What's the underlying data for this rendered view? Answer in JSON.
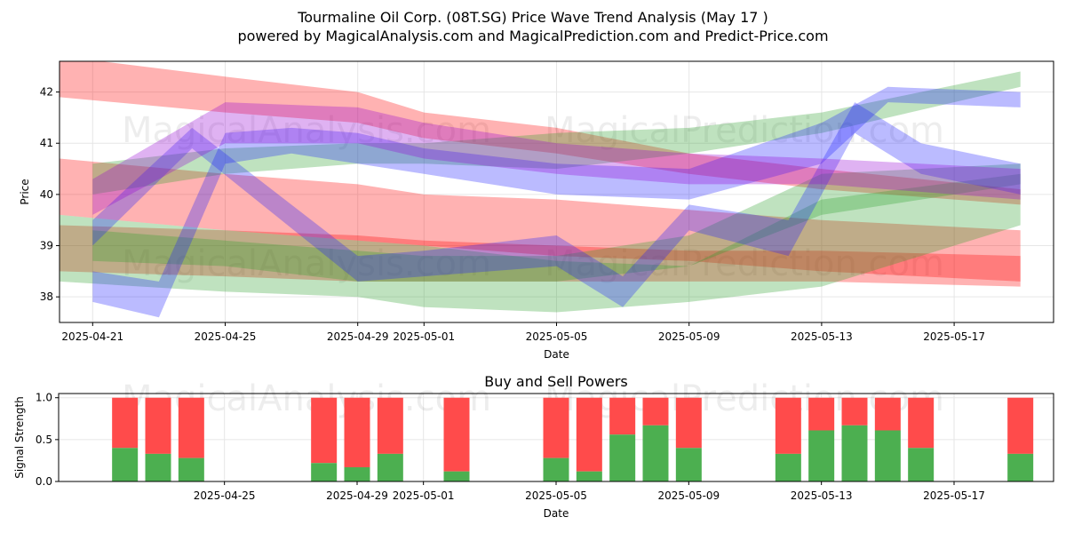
{
  "page": {
    "title_line1": "Tourmaline Oil Corp. (08T.SG) Price Wave Trend Analysis (May 17 )",
    "title_line2": "powered by MagicalAnalysis.com and MagicalPrediction.com and Predict-Price.com",
    "watermarks": [
      "MagicalAnalysis.com",
      "MagicalPrediction.com"
    ]
  },
  "colors": {
    "red": "#ff0000",
    "green": "#2ca02c",
    "blue": "#1f1fff",
    "purple": "#9400d3",
    "buy": "#4caf50",
    "sell": "#ff4b4b"
  },
  "chart_data": [
    {
      "type": "area",
      "title": "",
      "xlabel": "Date",
      "ylabel": "Price",
      "x_range": [
        "2025-04-20",
        "2025-05-20"
      ],
      "ylim": [
        37.5,
        42.6
      ],
      "y_ticks": [
        38,
        39,
        40,
        41,
        42
      ],
      "x_ticks": [
        "2025-04-21",
        "2025-04-25",
        "2025-04-29",
        "2025-05-01",
        "2025-05-05",
        "2025-05-09",
        "2025-05-13",
        "2025-05-17"
      ],
      "grid": true,
      "series": [
        {
          "color": "red",
          "band": [
            {
              "x": "2025-04-20",
              "low": 41.9,
              "high": 42.7
            },
            {
              "x": "2025-04-25",
              "low": 41.6,
              "high": 42.3
            },
            {
              "x": "2025-04-29",
              "low": 41.4,
              "high": 42.0
            },
            {
              "x": "2025-05-01",
              "low": 41.1,
              "high": 41.6
            },
            {
              "x": "2025-05-05",
              "low": 40.8,
              "high": 41.3
            },
            {
              "x": "2025-05-09",
              "low": 40.4,
              "high": 40.8
            },
            {
              "x": "2025-05-13",
              "low": 40.1,
              "high": 40.5
            },
            {
              "x": "2025-05-19",
              "low": 39.8,
              "high": 40.1
            }
          ]
        },
        {
          "color": "red",
          "band": [
            {
              "x": "2025-04-20",
              "low": 39.6,
              "high": 40.7
            },
            {
              "x": "2025-04-25",
              "low": 39.3,
              "high": 40.4
            },
            {
              "x": "2025-04-29",
              "low": 39.1,
              "high": 40.2
            },
            {
              "x": "2025-05-01",
              "low": 39.0,
              "high": 40.0
            },
            {
              "x": "2025-05-05",
              "low": 38.8,
              "high": 39.9
            },
            {
              "x": "2025-05-09",
              "low": 38.7,
              "high": 39.7
            },
            {
              "x": "2025-05-13",
              "low": 38.5,
              "high": 39.5
            },
            {
              "x": "2025-05-19",
              "low": 38.3,
              "high": 39.3
            }
          ]
        },
        {
          "color": "red",
          "band": [
            {
              "x": "2025-04-20",
              "low": 38.5,
              "high": 39.4
            },
            {
              "x": "2025-04-25",
              "low": 38.4,
              "high": 39.3
            },
            {
              "x": "2025-04-29",
              "low": 38.3,
              "high": 39.2
            },
            {
              "x": "2025-05-01",
              "low": 38.3,
              "high": 39.1
            },
            {
              "x": "2025-05-05",
              "low": 38.3,
              "high": 39.0
            },
            {
              "x": "2025-05-09",
              "low": 38.3,
              "high": 38.9
            },
            {
              "x": "2025-05-13",
              "low": 38.3,
              "high": 38.9
            },
            {
              "x": "2025-05-19",
              "low": 38.2,
              "high": 38.8
            }
          ]
        },
        {
          "color": "green",
          "band": [
            {
              "x": "2025-04-20",
              "low": 38.3,
              "high": 39.6
            },
            {
              "x": "2025-04-25",
              "low": 38.1,
              "high": 39.3
            },
            {
              "x": "2025-04-29",
              "low": 38.0,
              "high": 39.1
            },
            {
              "x": "2025-05-01",
              "low": 37.8,
              "high": 39.0
            },
            {
              "x": "2025-05-05",
              "low": 37.7,
              "high": 38.7
            },
            {
              "x": "2025-05-09",
              "low": 37.9,
              "high": 38.6
            },
            {
              "x": "2025-05-13",
              "low": 38.2,
              "high": 39.9
            },
            {
              "x": "2025-05-19",
              "low": 39.4,
              "high": 40.4
            }
          ]
        },
        {
          "color": "green",
          "band": [
            {
              "x": "2025-04-21",
              "low": 40.0,
              "high": 40.6
            },
            {
              "x": "2025-04-25",
              "low": 40.4,
              "high": 40.9
            },
            {
              "x": "2025-04-29",
              "low": 40.6,
              "high": 41.0
            },
            {
              "x": "2025-05-01",
              "low": 40.6,
              "high": 41.0
            },
            {
              "x": "2025-05-05",
              "low": 40.5,
              "high": 41.2
            },
            {
              "x": "2025-05-09",
              "low": 40.8,
              "high": 41.3
            },
            {
              "x": "2025-05-13",
              "low": 41.2,
              "high": 41.6
            },
            {
              "x": "2025-05-19",
              "low": 42.1,
              "high": 42.4
            }
          ]
        },
        {
          "color": "green",
          "band": [
            {
              "x": "2025-04-21",
              "low": 38.7,
              "high": 39.3
            },
            {
              "x": "2025-04-25",
              "low": 38.6,
              "high": 39.1
            },
            {
              "x": "2025-04-29",
              "low": 38.3,
              "high": 38.9
            },
            {
              "x": "2025-05-01",
              "low": 38.3,
              "high": 38.8
            },
            {
              "x": "2025-05-05",
              "low": 38.3,
              "high": 38.8
            },
            {
              "x": "2025-05-09",
              "low": 38.6,
              "high": 39.2
            },
            {
              "x": "2025-05-13",
              "low": 39.6,
              "high": 40.4
            },
            {
              "x": "2025-05-19",
              "low": 40.2,
              "high": 40.6
            }
          ]
        },
        {
          "color": "blue",
          "band": [
            {
              "x": "2025-04-21",
              "low": 37.9,
              "high": 38.5
            },
            {
              "x": "2025-04-23",
              "low": 37.6,
              "high": 38.3
            },
            {
              "x": "2025-04-25",
              "low": 40.6,
              "high": 41.2
            },
            {
              "x": "2025-04-27",
              "low": 40.8,
              "high": 41.3
            },
            {
              "x": "2025-04-29",
              "low": 40.6,
              "high": 41.2
            },
            {
              "x": "2025-05-01",
              "low": 40.4,
              "high": 40.9
            },
            {
              "x": "2025-05-05",
              "low": 40.0,
              "high": 40.6
            },
            {
              "x": "2025-05-09",
              "low": 39.9,
              "high": 40.5
            },
            {
              "x": "2025-05-13",
              "low": 40.6,
              "high": 41.4
            },
            {
              "x": "2025-05-15",
              "low": 41.8,
              "high": 42.1
            },
            {
              "x": "2025-05-19",
              "low": 41.7,
              "high": 42.0
            }
          ]
        },
        {
          "color": "blue",
          "band": [
            {
              "x": "2025-04-21",
              "low": 39.0,
              "high": 39.5
            },
            {
              "x": "2025-04-24",
              "low": 40.9,
              "high": 41.3
            },
            {
              "x": "2025-04-29",
              "low": 38.3,
              "high": 38.8
            },
            {
              "x": "2025-05-01",
              "low": 38.4,
              "high": 38.9
            },
            {
              "x": "2025-05-05",
              "low": 38.6,
              "high": 39.2
            },
            {
              "x": "2025-05-07",
              "low": 37.8,
              "high": 38.4
            },
            {
              "x": "2025-05-09",
              "low": 39.3,
              "high": 39.8
            },
            {
              "x": "2025-05-12",
              "low": 38.8,
              "high": 39.5
            },
            {
              "x": "2025-05-14",
              "low": 41.2,
              "high": 41.8
            },
            {
              "x": "2025-05-16",
              "low": 40.4,
              "high": 41.0
            },
            {
              "x": "2025-05-19",
              "low": 40.0,
              "high": 40.6
            }
          ]
        },
        {
          "color": "purple",
          "band": [
            {
              "x": "2025-04-21",
              "low": 39.6,
              "high": 40.3
            },
            {
              "x": "2025-04-25",
              "low": 41.0,
              "high": 41.8
            },
            {
              "x": "2025-04-29",
              "low": 41.0,
              "high": 41.7
            },
            {
              "x": "2025-05-01",
              "low": 40.7,
              "high": 41.4
            },
            {
              "x": "2025-05-05",
              "low": 40.4,
              "high": 41.0
            },
            {
              "x": "2025-05-09",
              "low": 40.2,
              "high": 40.8
            },
            {
              "x": "2025-05-13",
              "low": 40.2,
              "high": 40.7
            },
            {
              "x": "2025-05-19",
              "low": 39.9,
              "high": 40.5
            }
          ]
        }
      ]
    },
    {
      "type": "bar",
      "title": "Buy and Sell Powers",
      "xlabel": "Date",
      "ylabel": "Signal Strength",
      "ylim": [
        0,
        1.05
      ],
      "y_ticks": [
        "0.0",
        "0.5",
        "1.0"
      ],
      "x_range": [
        "2025-04-20",
        "2025-05-20"
      ],
      "x_ticks": [
        "2025-04-25",
        "2025-04-29",
        "2025-05-01",
        "2025-05-05",
        "2025-05-09",
        "2025-05-13",
        "2025-05-17"
      ],
      "grid": true,
      "dates": [
        "2025-04-22",
        "2025-04-23",
        "2025-04-24",
        "2025-04-28",
        "2025-04-29",
        "2025-04-30",
        "2025-05-02",
        "2025-05-05",
        "2025-05-06",
        "2025-05-07",
        "2025-05-08",
        "2025-05-09",
        "2025-05-12",
        "2025-05-13",
        "2025-05-14",
        "2025-05-15",
        "2025-05-16",
        "2025-05-19"
      ],
      "buy": [
        0.4,
        0.33,
        0.28,
        0.22,
        0.17,
        0.33,
        0.12,
        0.28,
        0.12,
        0.56,
        0.67,
        0.4,
        0.33,
        0.61,
        0.67,
        0.61,
        0.4,
        0.33
      ],
      "total": 1.0
    }
  ]
}
